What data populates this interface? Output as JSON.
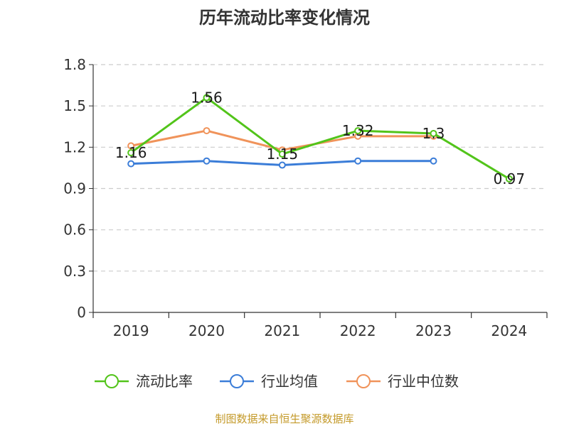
{
  "chart_data": {
    "type": "line",
    "title": "历年流动比率变化情况",
    "categories": [
      "2019",
      "2020",
      "2021",
      "2022",
      "2023",
      "2024"
    ],
    "ylim": [
      0,
      1.8
    ],
    "yticks": [
      "0",
      "0.3",
      "0.6",
      "0.9",
      "1.2",
      "1.5",
      "1.8"
    ],
    "grid": true,
    "legend_position": "bottom",
    "series": [
      {
        "name": "流动比率",
        "color": "#52c41a",
        "values": [
          1.16,
          1.56,
          1.15,
          1.32,
          1.3,
          0.97
        ],
        "labels": [
          "1.16",
          "1.56",
          "1.15",
          "1.32",
          "1.3",
          "0.97"
        ]
      },
      {
        "name": "行业均值",
        "color": "#3b7dd8",
        "values": [
          1.08,
          1.1,
          1.07,
          1.1,
          1.1,
          null
        ]
      },
      {
        "name": "行业中位数",
        "color": "#f0935a",
        "values": [
          1.21,
          1.32,
          1.18,
          1.28,
          1.28,
          null
        ]
      }
    ]
  },
  "source": {
    "text": "制图数据来自恒生聚源数据库",
    "color": "#c49a2a"
  }
}
